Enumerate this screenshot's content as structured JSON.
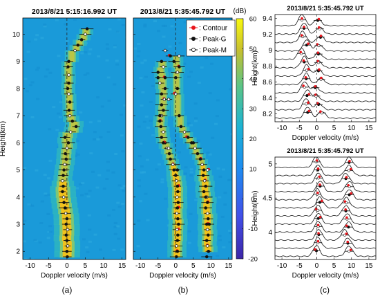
{
  "figure": {
    "captions": [
      "(a)",
      "(b)",
      "(c)"
    ],
    "colorbar": {
      "unit": "(dB)",
      "ticks": [
        60,
        50,
        40,
        30,
        20,
        10,
        0,
        -10,
        -20
      ],
      "range": [
        -20,
        60
      ]
    },
    "legend": [
      {
        "label": ": Contour",
        "color": "#e8141b",
        "marker": "filled-dot"
      },
      {
        "label": ": Peak-G",
        "color": "#111111",
        "marker": "filled-dot"
      },
      {
        "label": ": Peak-M",
        "color": "#111111",
        "marker": "open-dot"
      }
    ],
    "colors": {
      "high_power": "#f0c21e",
      "mid_power": "#2eb5c0",
      "low_power": "#1a9ad9",
      "contour": "#e8141b",
      "peak": "#111111"
    }
  },
  "chart_data": [
    {
      "panel": "a",
      "type": "scatter",
      "title": "2013/8/21   5:15:16.992 UT",
      "xlabel": "Doppler velocity (m/s)",
      "ylabel": "Height(km)",
      "xlim": [
        -12,
        16
      ],
      "ylim": [
        1.7,
        10.6
      ],
      "xticks": [
        -10,
        -5,
        0,
        5,
        10,
        15
      ],
      "yticks": [
        2,
        3,
        4,
        5,
        6,
        7,
        8,
        9,
        10
      ],
      "series": [
        {
          "points": [
            [
              5.5,
              10.2
            ],
            [
              5.0,
              10.0
            ],
            [
              4.0,
              9.8
            ],
            [
              3.0,
              9.6
            ],
            [
              2.2,
              9.4
            ],
            [
              0.5,
              9.0
            ],
            [
              0.3,
              8.8
            ],
            [
              0.5,
              8.5
            ],
            [
              0.5,
              8.2
            ],
            [
              0.2,
              8.0
            ],
            [
              0.5,
              7.8
            ],
            [
              0.8,
              7.5
            ],
            [
              0.6,
              7.2
            ],
            [
              0.8,
              7.0
            ],
            [
              1.5,
              6.8
            ],
            [
              2.5,
              6.6
            ],
            [
              1.0,
              6.4
            ],
            [
              -0.5,
              6.2
            ],
            [
              0.4,
              6.0
            ],
            [
              0.0,
              5.8
            ],
            [
              -0.4,
              5.6
            ],
            [
              -0.2,
              5.4
            ],
            [
              -0.6,
              5.2
            ],
            [
              -0.8,
              5.0
            ],
            [
              -1.0,
              4.8
            ],
            [
              -1.2,
              4.6
            ],
            [
              -1.0,
              4.4
            ],
            [
              -1.2,
              4.2
            ],
            [
              -0.9,
              4.0
            ],
            [
              -0.8,
              3.8
            ],
            [
              -0.5,
              3.6
            ],
            [
              -0.3,
              3.4
            ],
            [
              0.0,
              3.2
            ],
            [
              -0.2,
              3.0
            ],
            [
              0.2,
              2.8
            ],
            [
              -0.2,
              2.6
            ],
            [
              0.0,
              2.4
            ],
            [
              0.2,
              2.2
            ],
            [
              0.0,
              2.0
            ],
            [
              0.1,
              1.8
            ]
          ]
        }
      ]
    },
    {
      "panel": "b",
      "type": "scatter",
      "title": "2013/8/21   5:35:45.792 UT",
      "xlabel": "Doppler velocity (m/s)",
      "xlim": [
        -12,
        16
      ],
      "ylim": [
        1.7,
        10.6
      ],
      "xticks": [
        -10,
        -5,
        0,
        5,
        10,
        15
      ],
      "series": [
        {
          "points": [
            [
              -4.0,
              9.0
            ],
            [
              -3.5,
              8.8
            ],
            [
              -5.0,
              8.6
            ],
            [
              -3.0,
              8.4
            ],
            [
              -4.5,
              8.2
            ],
            [
              -3.0,
              8.0
            ],
            [
              -4.0,
              7.8
            ],
            [
              -3.2,
              7.6
            ],
            [
              -4.0,
              7.4
            ],
            [
              -3.5,
              7.2
            ],
            [
              -4.0,
              7.0
            ],
            [
              -4.5,
              6.8
            ],
            [
              -4.2,
              6.6
            ],
            [
              -3.5,
              6.4
            ],
            [
              -4.0,
              6.2
            ],
            [
              -3.0,
              6.0
            ],
            [
              -2.5,
              5.8
            ],
            [
              -1.8,
              5.6
            ],
            [
              -1.5,
              5.4
            ],
            [
              -0.8,
              5.2
            ],
            [
              -0.5,
              5.0
            ],
            [
              0.0,
              4.8
            ],
            [
              0.2,
              4.6
            ],
            [
              0.5,
              4.4
            ],
            [
              0.6,
              4.2
            ],
            [
              0.4,
              4.0
            ],
            [
              0.7,
              3.8
            ],
            [
              0.5,
              3.6
            ],
            [
              0.3,
              3.4
            ],
            [
              0.6,
              3.2
            ],
            [
              0.8,
              3.0
            ],
            [
              0.4,
              2.8
            ],
            [
              0.6,
              2.6
            ],
            [
              0.5,
              2.4
            ],
            [
              0.2,
              2.2
            ],
            [
              0.5,
              2.0
            ],
            [
              0.2,
              1.8
            ],
            [
              1.0,
              9.2
            ],
            [
              -0.5,
              9.0
            ],
            [
              1.0,
              8.8
            ],
            [
              0.5,
              8.6
            ],
            [
              0.0,
              8.4
            ],
            [
              0.5,
              8.0
            ],
            [
              0.0,
              7.8
            ],
            [
              1.0,
              7.0
            ],
            [
              1.5,
              6.6
            ],
            [
              2.5,
              6.4
            ],
            [
              3.5,
              6.2
            ],
            [
              4.5,
              6.0
            ],
            [
              5.5,
              5.8
            ],
            [
              6.2,
              5.6
            ],
            [
              7.0,
              5.4
            ],
            [
              7.5,
              5.2
            ],
            [
              8.0,
              5.0
            ],
            [
              7.8,
              4.8
            ],
            [
              8.2,
              4.6
            ],
            [
              8.5,
              4.4
            ],
            [
              8.0,
              4.2
            ],
            [
              8.8,
              4.0
            ],
            [
              9.0,
              3.8
            ],
            [
              8.5,
              3.6
            ],
            [
              9.0,
              3.4
            ],
            [
              9.2,
              3.2
            ],
            [
              8.8,
              3.0
            ],
            [
              9.0,
              2.8
            ],
            [
              9.2,
              2.6
            ],
            [
              8.8,
              2.4
            ],
            [
              9.0,
              2.2
            ],
            [
              9.3,
              2.0
            ],
            [
              8.8,
              1.8
            ],
            [
              -3.0,
              9.4
            ],
            [
              -1.5,
              9.2
            ],
            [
              -5.0,
              8.4
            ],
            [
              -2.0,
              7.6
            ],
            [
              -4.5,
              7.0
            ],
            [
              -3.5,
              6.0
            ],
            [
              -2.0,
              5.8
            ],
            [
              0.5,
              5.0
            ],
            [
              5.0,
              6.0
            ],
            [
              9.0,
              5.0
            ],
            [
              8.5,
              4.0
            ],
            [
              9.5,
              3.0
            ]
          ]
        }
      ]
    },
    {
      "panel": "c-top",
      "type": "line",
      "title": "2013/8/21   5:35:45.792 UT",
      "xlabel": "Doppler velocity (m/s)",
      "ylabel": "Height(km)",
      "xlim": [
        -12,
        17
      ],
      "ylim": [
        8.1,
        9.45
      ],
      "xticks": [
        -10,
        -5,
        0,
        5,
        10,
        15
      ],
      "yticks": [
        8.2,
        8.4,
        8.6,
        8.8,
        9,
        9.2,
        9.4
      ]
    },
    {
      "panel": "c-bottom",
      "type": "line",
      "title": "2013/8/21   5:35:45.792 UT",
      "xlabel": "Doppler velocity (m/s)",
      "ylabel": "Height(km)",
      "xlim": [
        -12,
        17
      ],
      "ylim": [
        3.6,
        5.1
      ],
      "xticks": [
        -10,
        -5,
        0,
        5,
        10,
        15
      ],
      "yticks": [
        4,
        4.5,
        5
      ]
    }
  ]
}
